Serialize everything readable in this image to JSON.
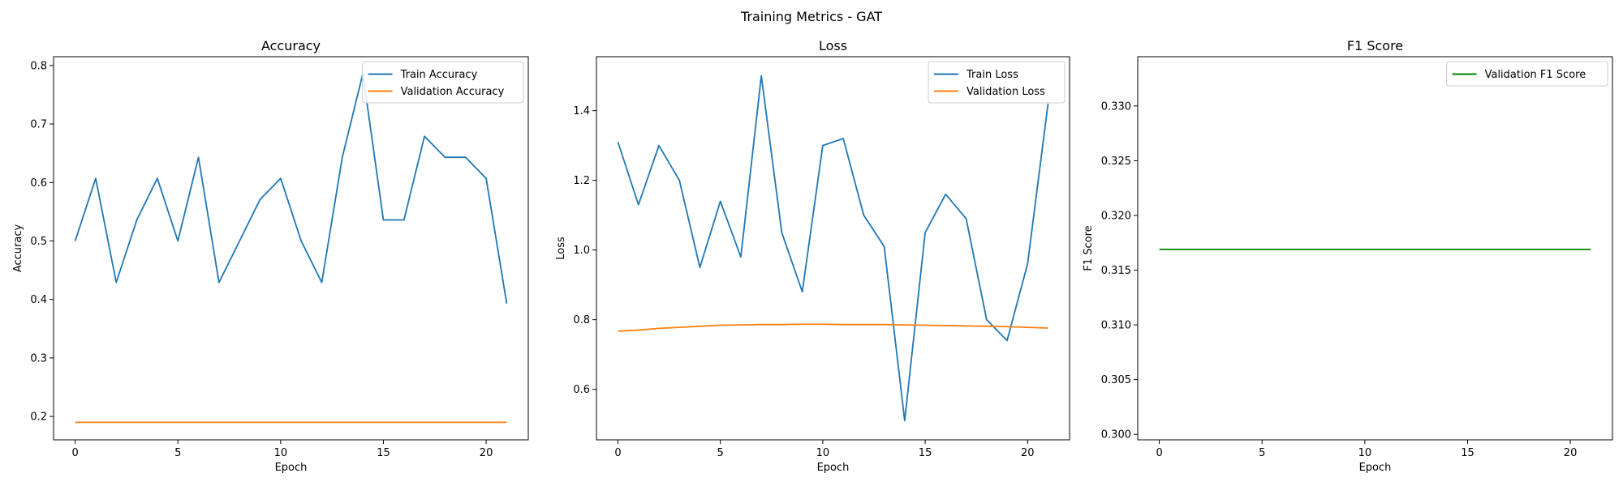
{
  "suptitle": "Training Metrics - GAT",
  "colors": {
    "blue": "#1f77b4",
    "orange": "#ff7f0e",
    "green": "#008000"
  },
  "chart_data": [
    {
      "type": "line",
      "title": "Accuracy",
      "xlabel": "Epoch",
      "ylabel": "Accuracy",
      "xlim": [
        -1.05,
        22.05
      ],
      "ylim": [
        0.16,
        0.815
      ],
      "xticks": [
        0,
        5,
        10,
        15,
        20
      ],
      "yticks": [
        0.2,
        0.3,
        0.4,
        0.5,
        0.6,
        0.7,
        0.8
      ],
      "ytick_labels": [
        "0.2",
        "0.3",
        "0.4",
        "0.5",
        "0.6",
        "0.7",
        "0.8"
      ],
      "legend": "top-right",
      "x": [
        0,
        1,
        2,
        3,
        4,
        5,
        6,
        7,
        8,
        9,
        10,
        11,
        12,
        13,
        14,
        15,
        16,
        17,
        18,
        19,
        20,
        21
      ],
      "series": [
        {
          "name": "Train Accuracy",
          "color": "#1f77b4",
          "values": [
            0.5,
            0.607,
            0.429,
            0.536,
            0.607,
            0.5,
            0.643,
            0.429,
            0.5,
            0.571,
            0.607,
            0.5,
            0.429,
            0.643,
            0.786,
            0.536,
            0.536,
            0.679,
            0.643,
            0.643,
            0.607,
            0.393
          ]
        },
        {
          "name": "Validation Accuracy",
          "color": "#ff7f0e",
          "values": [
            0.19,
            0.19,
            0.19,
            0.19,
            0.19,
            0.19,
            0.19,
            0.19,
            0.19,
            0.19,
            0.19,
            0.19,
            0.19,
            0.19,
            0.19,
            0.19,
            0.19,
            0.19,
            0.19,
            0.19,
            0.19,
            0.19
          ]
        }
      ]
    },
    {
      "type": "line",
      "title": "Loss",
      "xlabel": "Epoch",
      "ylabel": "Loss",
      "xlim": [
        -1.05,
        22.05
      ],
      "ylim": [
        0.455,
        1.555
      ],
      "xticks": [
        0,
        5,
        10,
        15,
        20
      ],
      "yticks": [
        0.6,
        0.8,
        1.0,
        1.2,
        1.4
      ],
      "ytick_labels": [
        "0.6",
        "0.8",
        "1.0",
        "1.2",
        "1.4"
      ],
      "legend": "top-right",
      "x": [
        0,
        1,
        2,
        3,
        4,
        5,
        6,
        7,
        8,
        9,
        10,
        11,
        12,
        13,
        14,
        15,
        16,
        17,
        18,
        19,
        20,
        21
      ],
      "series": [
        {
          "name": "Train Loss",
          "color": "#1f77b4",
          "values": [
            1.31,
            1.13,
            1.3,
            1.2,
            0.95,
            1.14,
            0.98,
            1.5,
            1.05,
            0.88,
            1.3,
            1.32,
            1.1,
            1.01,
            0.51,
            1.05,
            1.16,
            1.09,
            0.8,
            0.74,
            0.96,
            1.42
          ]
        },
        {
          "name": "Validation Loss",
          "color": "#ff7f0e",
          "values": [
            0.767,
            0.77,
            0.775,
            0.778,
            0.781,
            0.784,
            0.785,
            0.786,
            0.786,
            0.787,
            0.787,
            0.786,
            0.786,
            0.786,
            0.785,
            0.784,
            0.783,
            0.782,
            0.781,
            0.78,
            0.778,
            0.776
          ]
        }
      ]
    },
    {
      "type": "line",
      "title": "F1 Score",
      "xlabel": "Epoch",
      "ylabel": "F1 Score",
      "xlim": [
        -1.05,
        22.05
      ],
      "ylim": [
        0.2995,
        0.3345
      ],
      "xticks": [
        0,
        5,
        10,
        15,
        20
      ],
      "yticks": [
        0.3,
        0.305,
        0.31,
        0.315,
        0.32,
        0.325,
        0.33
      ],
      "ytick_labels": [
        "0.300",
        "0.305",
        "0.310",
        "0.315",
        "0.320",
        "0.325",
        "0.330"
      ],
      "legend": "top-right",
      "x": [
        0,
        1,
        2,
        3,
        4,
        5,
        6,
        7,
        8,
        9,
        10,
        11,
        12,
        13,
        14,
        15,
        16,
        17,
        18,
        19,
        20,
        21
      ],
      "series": [
        {
          "name": "Validation F1 Score",
          "color": "#008000",
          "values": [
            0.3169,
            0.3169,
            0.3169,
            0.3169,
            0.3169,
            0.3169,
            0.3169,
            0.3169,
            0.3169,
            0.3169,
            0.3169,
            0.3169,
            0.3169,
            0.3169,
            0.3169,
            0.3169,
            0.3169,
            0.3169,
            0.3169,
            0.3169,
            0.3169,
            0.3169
          ]
        }
      ]
    }
  ]
}
